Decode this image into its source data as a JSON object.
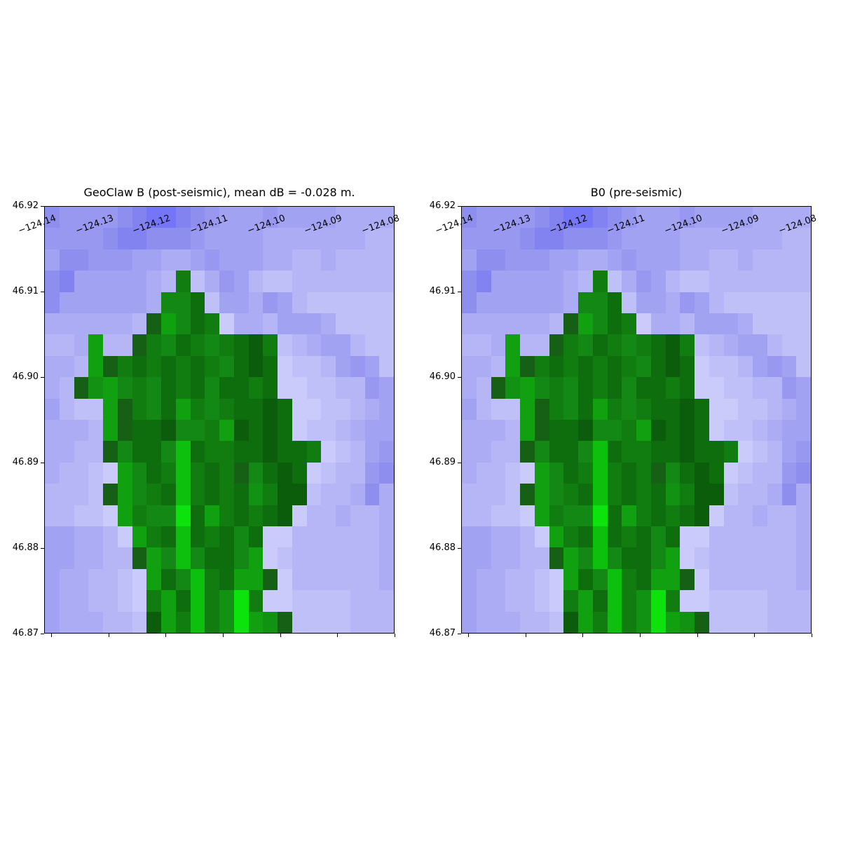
{
  "figure": {
    "background": "#ffffff"
  },
  "chart_data": {
    "type": "heatmap",
    "description": "Two side-by-side pcolor topography grids comparing post-seismic and pre-seismic topography B. Green cells = land, blue/violet cells = water; darker blue = deeper, brighter green = higher. Both panels display visually identical 24-column by 20-row grids over the same lon/lat window.",
    "panels": [
      {
        "title": "GeoClaw B (post-seismic), mean dB = -0.028 m."
      },
      {
        "title": "B0 (pre-seismic)"
      }
    ],
    "x_tick_labels": [
      "−124.14",
      "−124.13",
      "−124.12",
      "−124.11",
      "−124.10",
      "−124.09",
      "−124.08"
    ],
    "y_tick_labels": [
      "46.92",
      "46.91",
      "46.90",
      "46.89",
      "46.88",
      "46.87"
    ],
    "xlim": [
      -124.1413,
      -124.0803
    ],
    "ylim": [
      46.87,
      46.92
    ],
    "grid_cols": 24,
    "grid_rows": 20,
    "legend_position": "none",
    "grid_lines": false,
    "palette": [
      "#7575f7",
      "#8282f1",
      "#8e8eef",
      "#9898f1",
      "#a2a2f3",
      "#acacf5",
      "#b6b6f7",
      "#c0c0f9",
      "#cacafb",
      "#0b5c0b",
      "#0e6e0e",
      "#117d11",
      "#148814",
      "#10a010",
      "#0dc00d",
      "#0ce20c",
      "#166016",
      "#129212"
    ],
    "grid": [
      [
        2,
        3,
        3,
        3,
        3,
        2,
        1,
        0,
        0,
        1,
        2,
        3,
        4,
        4,
        4,
        3,
        4,
        4,
        4,
        4,
        5,
        5,
        5,
        5
      ],
      [
        3,
        3,
        3,
        3,
        2,
        1,
        1,
        2,
        2,
        2,
        3,
        4,
        4,
        4,
        4,
        5,
        5,
        5,
        5,
        5,
        5,
        5,
        6,
        6
      ],
      [
        4,
        2,
        2,
        3,
        3,
        3,
        4,
        4,
        5,
        5,
        4,
        3,
        4,
        4,
        4,
        5,
        5,
        6,
        6,
        5,
        6,
        6,
        6,
        6
      ],
      [
        2,
        1,
        4,
        4,
        4,
        4,
        4,
        5,
        6,
        11,
        7,
        5,
        3,
        4,
        6,
        7,
        7,
        6,
        6,
        6,
        6,
        6,
        6,
        6
      ],
      [
        2,
        4,
        4,
        4,
        4,
        4,
        4,
        5,
        12,
        12,
        10,
        7,
        4,
        4,
        5,
        3,
        4,
        6,
        7,
        7,
        7,
        7,
        7,
        7
      ],
      [
        5,
        5,
        5,
        5,
        5,
        5,
        6,
        16,
        13,
        12,
        10,
        11,
        8,
        5,
        5,
        6,
        4,
        4,
        4,
        5,
        7,
        7,
        7,
        7
      ],
      [
        6,
        6,
        5,
        13,
        6,
        6,
        16,
        11,
        12,
        10,
        11,
        12,
        11,
        10,
        9,
        11,
        7,
        6,
        5,
        4,
        4,
        6,
        7,
        7
      ],
      [
        5,
        5,
        6,
        13,
        16,
        11,
        10,
        11,
        10,
        11,
        10,
        11,
        12,
        10,
        9,
        10,
        8,
        7,
        7,
        6,
        4,
        3,
        4,
        7
      ],
      [
        5,
        6,
        16,
        17,
        13,
        12,
        11,
        12,
        10,
        11,
        10,
        12,
        10,
        10,
        11,
        10,
        8,
        8,
        7,
        7,
        6,
        6,
        3,
        4
      ],
      [
        4,
        6,
        7,
        7,
        13,
        16,
        11,
        12,
        10,
        13,
        11,
        12,
        11,
        10,
        10,
        9,
        10,
        8,
        8,
        7,
        7,
        6,
        5,
        4
      ],
      [
        5,
        5,
        5,
        6,
        13,
        16,
        10,
        10,
        9,
        12,
        12,
        11,
        13,
        9,
        10,
        9,
        10,
        8,
        7,
        7,
        6,
        5,
        4,
        4
      ],
      [
        5,
        5,
        6,
        6,
        16,
        12,
        10,
        10,
        12,
        14,
        10,
        11,
        11,
        10,
        10,
        9,
        10,
        10,
        11,
        8,
        7,
        6,
        4,
        3
      ],
      [
        5,
        6,
        6,
        7,
        8,
        13,
        12,
        10,
        11,
        14,
        11,
        10,
        11,
        16,
        12,
        10,
        9,
        10,
        8,
        7,
        6,
        6,
        3,
        2
      ],
      [
        6,
        6,
        6,
        7,
        16,
        13,
        12,
        11,
        10,
        14,
        11,
        10,
        11,
        10,
        17,
        11,
        9,
        9,
        7,
        6,
        6,
        5,
        2,
        5
      ],
      [
        6,
        6,
        7,
        7,
        8,
        13,
        11,
        12,
        12,
        15,
        10,
        13,
        11,
        10,
        11,
        10,
        9,
        8,
        6,
        6,
        5,
        6,
        6,
        5
      ],
      [
        4,
        4,
        5,
        5,
        6,
        8,
        13,
        11,
        10,
        14,
        10,
        11,
        10,
        12,
        10,
        8,
        8,
        6,
        6,
        6,
        6,
        6,
        6,
        5
      ],
      [
        4,
        4,
        5,
        5,
        6,
        6,
        16,
        13,
        12,
        14,
        12,
        10,
        10,
        12,
        13,
        8,
        7,
        6,
        6,
        6,
        6,
        6,
        6,
        5
      ],
      [
        4,
        5,
        5,
        6,
        6,
        7,
        8,
        13,
        10,
        12,
        14,
        11,
        10,
        13,
        13,
        16,
        8,
        6,
        6,
        6,
        6,
        6,
        6,
        5
      ],
      [
        4,
        5,
        5,
        6,
        6,
        7,
        8,
        11,
        13,
        10,
        14,
        11,
        17,
        15,
        11,
        8,
        8,
        7,
        7,
        7,
        7,
        6,
        6,
        6
      ],
      [
        4,
        5,
        5,
        5,
        6,
        6,
        7,
        9,
        13,
        11,
        14,
        11,
        17,
        15,
        13,
        17,
        16,
        7,
        7,
        7,
        7,
        6,
        6,
        6
      ]
    ]
  }
}
